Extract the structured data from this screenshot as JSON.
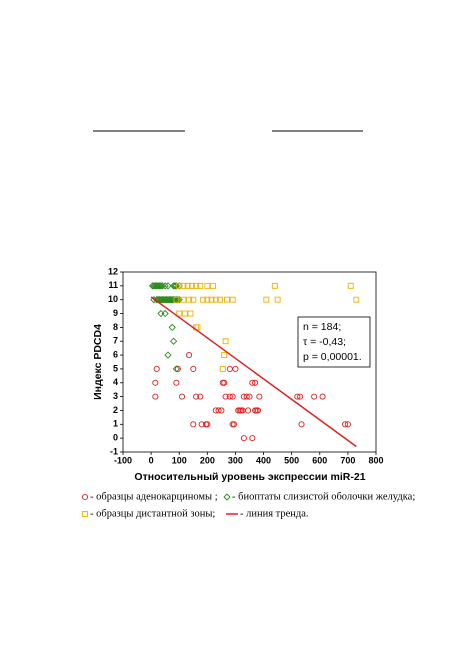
{
  "chart_data": {
    "type": "scatter",
    "xlabel": "Относительный уровень экспрессии miR-21",
    "ylabel": "Индекс PDCD4",
    "xlim": [
      -100,
      800
    ],
    "ylim": [
      -1,
      12
    ],
    "xticks": [
      -100,
      0,
      100,
      200,
      300,
      400,
      500,
      600,
      700,
      800
    ],
    "yticks": [
      -1,
      0,
      1,
      2,
      3,
      4,
      5,
      6,
      7,
      8,
      9,
      10,
      11,
      12
    ],
    "annotation": [
      "n = 184;",
      "τ = -0,43;",
      "p = 0,00001."
    ],
    "series": [
      {
        "name": "- образцы аденокарциномы ;",
        "color": "#e02020",
        "marker": "circle",
        "x": [
          20,
          15,
          15,
          90,
          95,
          110,
          135,
          150,
          160,
          175,
          150,
          180,
          195,
          200,
          230,
          240,
          250,
          255,
          260,
          265,
          280,
          290,
          280,
          300,
          290,
          295,
          310,
          320,
          330,
          340,
          350,
          345,
          360,
          370,
          370,
          380,
          385,
          330,
          360,
          520,
          530,
          535,
          580,
          610,
          690,
          700,
          315,
          325,
          375
        ],
        "values": [
          5,
          4,
          3,
          4,
          5,
          3,
          6,
          5,
          3,
          3,
          1,
          1,
          1,
          1,
          2,
          2,
          2,
          4,
          4,
          3,
          3,
          3,
          5,
          5,
          1,
          1,
          2,
          2,
          3,
          3,
          3,
          2,
          4,
          4,
          2,
          2,
          3,
          0,
          0,
          3,
          3,
          1,
          3,
          3,
          1,
          1,
          2,
          2,
          2
        ]
      },
      {
        "name": "- биоптаты слизистой оболочки желудка;",
        "color": "#2a8a1a",
        "marker": "diamond",
        "x": [
          5,
          10,
          15,
          20,
          25,
          30,
          35,
          40,
          50,
          60,
          80,
          85,
          90,
          100,
          10,
          20,
          25,
          30,
          35,
          40,
          45,
          50,
          55,
          60,
          65,
          70,
          75,
          80,
          85,
          90,
          95,
          100,
          35,
          50,
          75,
          80,
          60,
          90
        ],
        "values": [
          11,
          11,
          11,
          11,
          11,
          11,
          11,
          11,
          11,
          11,
          11,
          11,
          11,
          11,
          10,
          10,
          10,
          10,
          10,
          10,
          10,
          10,
          10,
          10,
          10,
          10,
          10,
          10,
          10,
          10,
          10,
          10,
          9,
          9,
          8,
          7,
          6,
          5
        ]
      },
      {
        "name": "- образцы дистантной зоны;",
        "color": "#f0b000",
        "marker": "square",
        "x": [
          100,
          115,
          130,
          145,
          160,
          175,
          200,
          220,
          440,
          710,
          90,
          115,
          135,
          150,
          185,
          200,
          215,
          230,
          245,
          270,
          290,
          410,
          450,
          730,
          100,
          120,
          140,
          160,
          165,
          265,
          260,
          255
        ],
        "values": [
          11,
          11,
          11,
          11,
          11,
          11,
          11,
          11,
          11,
          11,
          10,
          10,
          10,
          10,
          10,
          10,
          10,
          10,
          10,
          10,
          10,
          10,
          10,
          10,
          9,
          9,
          9,
          8,
          8,
          7,
          6,
          5
        ]
      },
      {
        "name": "- линия тренда.",
        "color": "#e02020",
        "marker": "line",
        "x": [
          0,
          730
        ],
        "values": [
          10.2,
          -0.6
        ]
      }
    ]
  }
}
